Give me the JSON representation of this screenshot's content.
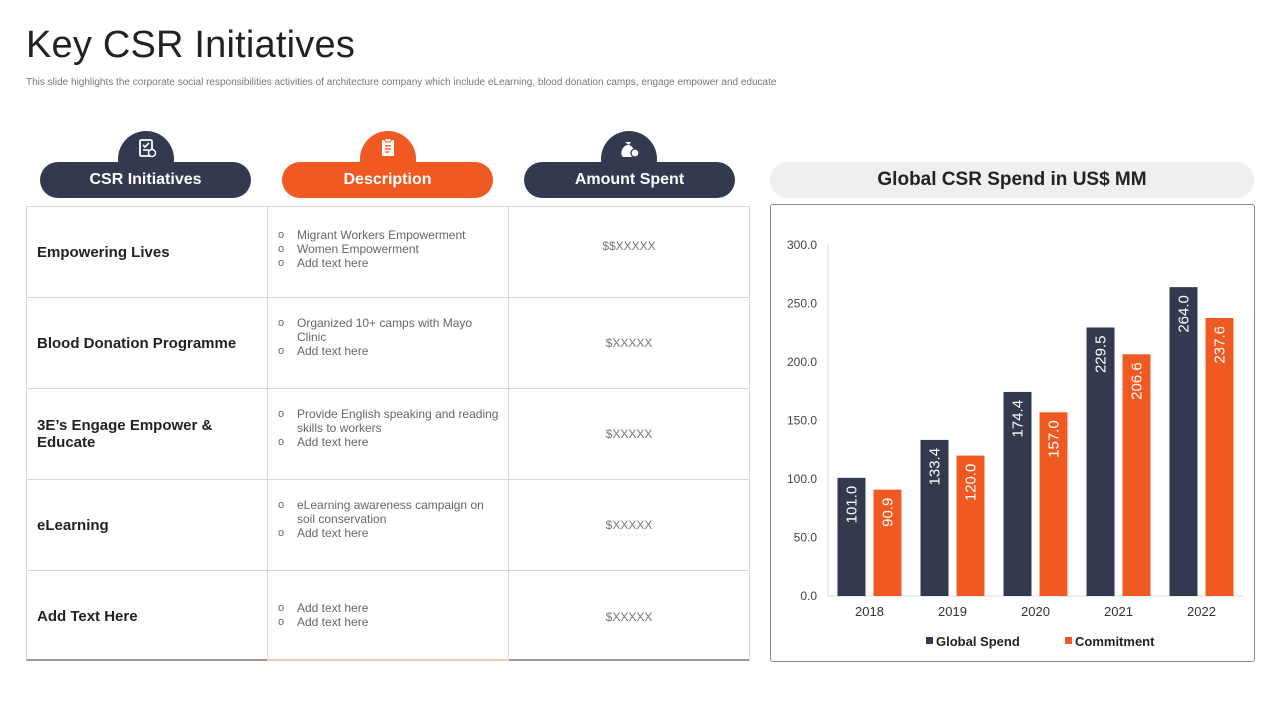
{
  "page": {
    "title": "Key CSR Initiatives",
    "subtitle": "This slide highlights the corporate social responsibilities activities of architecture company which include eLearning, blood donation camps, engage empower and educate"
  },
  "headers": {
    "initiatives": "CSR Initiatives",
    "description": "Description",
    "amount": "Amount Spent"
  },
  "rows": [
    {
      "name": "Empowering Lives",
      "bullets": [
        "Migrant Workers Empowerment",
        "Women Empowerment",
        "Add text here"
      ],
      "amount": "$$XXXXX"
    },
    {
      "name": "Blood Donation Programme",
      "bullets": [
        "Organized 10+ camps with Mayo Clinic",
        "Add text here"
      ],
      "amount": "$XXXXX"
    },
    {
      "name": "3E’s Engage Empower & Educate",
      "bullets": [
        "Provide English speaking and reading skills to workers",
        "Add text here"
      ],
      "amount": "$XXXXX"
    },
    {
      "name": "eLearning",
      "bullets": [
        "eLearning awareness campaign on soil conservation",
        "Add text here"
      ],
      "amount": "$XXXXX"
    },
    {
      "name": "Add Text Here",
      "bullets": [
        "Add text here",
        "Add text here"
      ],
      "amount": "$XXXXX"
    }
  ],
  "icons": {
    "initiatives": "gear-checklist-icon",
    "description": "clipboard-icon",
    "amount": "money-bag-icon"
  },
  "colors": {
    "dark": "#333a4f",
    "orange": "#f05a22"
  },
  "chart_data": {
    "type": "bar",
    "title": "Global CSR Spend in US$ MM",
    "categories": [
      "2018",
      "2019",
      "2020",
      "2021",
      "2022"
    ],
    "series": [
      {
        "name": "Global Spend",
        "color": "#333a4f",
        "values": [
          101.0,
          133.4,
          174.4,
          229.5,
          264.0
        ]
      },
      {
        "name": "Commitment",
        "color": "#f05a22",
        "values": [
          90.9,
          120.0,
          157.0,
          206.6,
          237.6
        ]
      }
    ],
    "yticks": [
      "0.0",
      "50.0",
      "100.0",
      "150.0",
      "200.0",
      "250.0",
      "300.0"
    ],
    "ylim": [
      0,
      300
    ],
    "legend": "bottom",
    "grid": false
  }
}
